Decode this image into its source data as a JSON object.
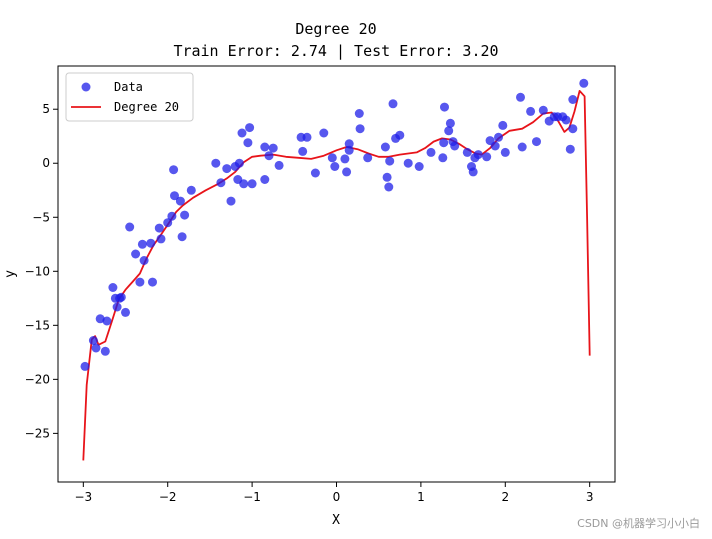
{
  "chart_data": {
    "type": "scatter",
    "title_lines": [
      "Degree 20",
      "Train Error: 2.74 | Test Error: 3.20"
    ],
    "xlabel": "X",
    "ylabel": "y",
    "xlim": [
      -3.3,
      3.3
    ],
    "ylim": [
      -29.5,
      9.0
    ],
    "xticks": [
      -3,
      -2,
      -1,
      0,
      1,
      2,
      3
    ],
    "yticks": [
      5,
      0,
      -5,
      -10,
      -15,
      -20,
      -25
    ],
    "legend": {
      "placement": "top-left",
      "entries": [
        "Data",
        "Degree 20"
      ]
    },
    "colors": {
      "data": "#1f1fe8",
      "fit": "#e8141a"
    },
    "scatter": [
      [
        -2.98,
        -18.8
      ],
      [
        -2.88,
        -16.4
      ],
      [
        -2.85,
        -17.1
      ],
      [
        -2.8,
        -14.4
      ],
      [
        -2.74,
        -17.4
      ],
      [
        -2.72,
        -14.6
      ],
      [
        -2.65,
        -11.5
      ],
      [
        -2.62,
        -12.5
      ],
      [
        -2.6,
        -13.3
      ],
      [
        -2.57,
        -12.5
      ],
      [
        -2.55,
        -12.4
      ],
      [
        -2.5,
        -13.8
      ],
      [
        -2.45,
        -5.9
      ],
      [
        -2.38,
        -8.4
      ],
      [
        -2.33,
        -11.0
      ],
      [
        -2.3,
        -7.5
      ],
      [
        -2.28,
        -9.0
      ],
      [
        -2.2,
        -7.4
      ],
      [
        -2.18,
        -11.0
      ],
      [
        -2.1,
        -6.0
      ],
      [
        -2.08,
        -7.0
      ],
      [
        -2.0,
        -5.5
      ],
      [
        -1.95,
        -4.9
      ],
      [
        -1.93,
        -0.6
      ],
      [
        -1.92,
        -3.0
      ],
      [
        -1.85,
        -3.5
      ],
      [
        -1.83,
        -6.8
      ],
      [
        -1.8,
        -4.8
      ],
      [
        -1.72,
        -2.5
      ],
      [
        -1.43,
        0.0
      ],
      [
        -1.37,
        -1.8
      ],
      [
        -1.3,
        -0.5
      ],
      [
        -1.25,
        -3.5
      ],
      [
        -1.2,
        -0.3
      ],
      [
        -1.17,
        -1.5
      ],
      [
        -1.15,
        0.0
      ],
      [
        -1.12,
        2.8
      ],
      [
        -1.1,
        -1.9
      ],
      [
        -1.05,
        1.9
      ],
      [
        -1.03,
        3.3
      ],
      [
        -1.0,
        -1.9
      ],
      [
        -0.85,
        1.5
      ],
      [
        -0.85,
        -1.5
      ],
      [
        -0.8,
        0.7
      ],
      [
        -0.75,
        1.4
      ],
      [
        -0.68,
        -0.2
      ],
      [
        -0.42,
        2.4
      ],
      [
        -0.4,
        1.1
      ],
      [
        -0.35,
        2.4
      ],
      [
        -0.25,
        -0.9
      ],
      [
        -0.15,
        2.8
      ],
      [
        -0.05,
        0.5
      ],
      [
        -0.02,
        -0.3
      ],
      [
        0.1,
        0.4
      ],
      [
        0.12,
        -0.8
      ],
      [
        0.15,
        1.8
      ],
      [
        0.15,
        1.2
      ],
      [
        0.27,
        4.6
      ],
      [
        0.28,
        3.2
      ],
      [
        0.37,
        0.5
      ],
      [
        0.58,
        1.5
      ],
      [
        0.6,
        -1.3
      ],
      [
        0.62,
        -2.2
      ],
      [
        0.63,
        0.2
      ],
      [
        0.67,
        5.5
      ],
      [
        0.7,
        2.3
      ],
      [
        0.75,
        2.6
      ],
      [
        0.85,
        0.0
      ],
      [
        0.98,
        -0.3
      ],
      [
        1.12,
        1.0
      ],
      [
        1.26,
        0.5
      ],
      [
        1.27,
        1.9
      ],
      [
        1.28,
        5.2
      ],
      [
        1.33,
        3.0
      ],
      [
        1.35,
        3.7
      ],
      [
        1.38,
        2.0
      ],
      [
        1.4,
        1.6
      ],
      [
        1.55,
        1.0
      ],
      [
        1.6,
        -0.3
      ],
      [
        1.62,
        -0.8
      ],
      [
        1.64,
        0.5
      ],
      [
        1.68,
        0.8
      ],
      [
        1.78,
        0.6
      ],
      [
        1.82,
        2.1
      ],
      [
        1.88,
        1.6
      ],
      [
        1.92,
        2.4
      ],
      [
        1.97,
        3.5
      ],
      [
        2.0,
        1.0
      ],
      [
        2.18,
        6.1
      ],
      [
        2.2,
        1.5
      ],
      [
        2.3,
        4.8
      ],
      [
        2.37,
        2.0
      ],
      [
        2.45,
        4.9
      ],
      [
        2.52,
        3.9
      ],
      [
        2.58,
        4.3
      ],
      [
        2.62,
        4.3
      ],
      [
        2.68,
        4.3
      ],
      [
        2.72,
        4.0
      ],
      [
        2.77,
        1.3
      ],
      [
        2.8,
        5.9
      ],
      [
        2.8,
        3.2
      ],
      [
        2.93,
        7.4
      ]
    ],
    "fit_line": [
      [
        -3.0,
        -27.5
      ],
      [
        -2.96,
        -20.5
      ],
      [
        -2.9,
        -16.3
      ],
      [
        -2.86,
        -16.0
      ],
      [
        -2.82,
        -16.8
      ],
      [
        -2.74,
        -16.5
      ],
      [
        -2.66,
        -14.6
      ],
      [
        -2.58,
        -12.6
      ],
      [
        -2.5,
        -11.7
      ],
      [
        -2.42,
        -11.0
      ],
      [
        -2.33,
        -10.2
      ],
      [
        -2.25,
        -8.8
      ],
      [
        -2.17,
        -7.6
      ],
      [
        -2.08,
        -6.6
      ],
      [
        -2.0,
        -5.7
      ],
      [
        -1.9,
        -4.5
      ],
      [
        -1.82,
        -3.9
      ],
      [
        -1.7,
        -3.2
      ],
      [
        -1.55,
        -2.5
      ],
      [
        -1.4,
        -1.9
      ],
      [
        -1.3,
        -1.4
      ],
      [
        -1.2,
        -0.8
      ],
      [
        -1.1,
        0.1
      ],
      [
        -1.0,
        0.6
      ],
      [
        -0.9,
        0.7
      ],
      [
        -0.75,
        0.8
      ],
      [
        -0.6,
        0.6
      ],
      [
        -0.45,
        0.5
      ],
      [
        -0.3,
        0.4
      ],
      [
        -0.15,
        0.7
      ],
      [
        0.0,
        1.2
      ],
      [
        0.12,
        1.5
      ],
      [
        0.25,
        1.3
      ],
      [
        0.38,
        0.9
      ],
      [
        0.5,
        0.6
      ],
      [
        0.62,
        0.6
      ],
      [
        0.75,
        0.8
      ],
      [
        0.85,
        0.9
      ],
      [
        0.95,
        1.0
      ],
      [
        1.05,
        1.4
      ],
      [
        1.15,
        2.0
      ],
      [
        1.25,
        2.3
      ],
      [
        1.35,
        2.2
      ],
      [
        1.45,
        1.8
      ],
      [
        1.55,
        1.3
      ],
      [
        1.65,
        0.9
      ],
      [
        1.72,
        0.8
      ],
      [
        1.82,
        1.4
      ],
      [
        1.92,
        2.3
      ],
      [
        2.05,
        3.0
      ],
      [
        2.2,
        3.2
      ],
      [
        2.33,
        3.8
      ],
      [
        2.45,
        4.6
      ],
      [
        2.55,
        4.7
      ],
      [
        2.62,
        4.0
      ],
      [
        2.7,
        2.9
      ],
      [
        2.76,
        3.3
      ],
      [
        2.82,
        4.8
      ],
      [
        2.88,
        6.7
      ],
      [
        2.94,
        6.2
      ],
      [
        2.97,
        -5.0
      ],
      [
        3.0,
        -17.8
      ]
    ]
  },
  "watermark": "CSDN @机器学习小小白"
}
